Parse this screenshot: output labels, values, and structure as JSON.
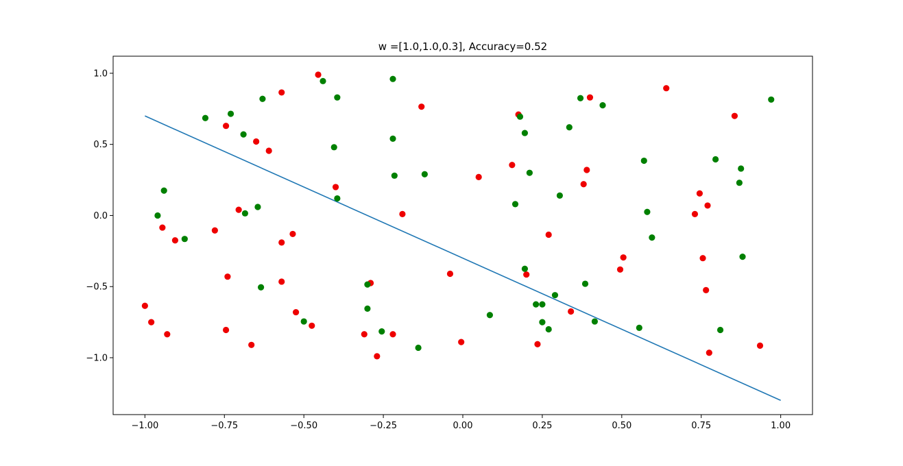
{
  "chart_data": {
    "type": "scatter",
    "title": "w =[1.0,1.0,0.3], Accuracy=0.52",
    "xlabel": "",
    "ylabel": "",
    "xlim": [
      -1.1,
      1.1
    ],
    "ylim": [
      -1.4,
      1.12
    ],
    "x_ticks": [
      -1.0,
      -0.75,
      -0.5,
      -0.25,
      0.0,
      0.25,
      0.5,
      0.75,
      1.0
    ],
    "x_tick_labels": [
      "−1.00",
      "−0.75",
      "−0.50",
      "−0.25",
      "0.00",
      "0.25",
      "0.50",
      "0.75",
      "1.00"
    ],
    "y_ticks": [
      1.0,
      0.5,
      0.0,
      -0.5,
      -1.0
    ],
    "y_tick_labels": [
      "1.0",
      "0.5",
      "0.0",
      "−0.5",
      "−1.0"
    ],
    "grid": false,
    "line": {
      "color": "#1f77b4",
      "points": [
        [
          -1.0,
          0.7
        ],
        [
          1.0,
          -1.3
        ]
      ]
    },
    "colors": {
      "red": "#ee0000",
      "green": "#008000"
    },
    "series": [
      {
        "color": "#ee0000",
        "points": [
          [
            -0.455,
            0.99
          ],
          [
            -0.57,
            0.865
          ],
          [
            -0.745,
            0.63
          ],
          [
            -0.65,
            0.52
          ],
          [
            -0.61,
            0.455
          ],
          [
            -0.705,
            0.04
          ],
          [
            -0.78,
            -0.105
          ],
          [
            -0.945,
            -0.085
          ],
          [
            -0.905,
            -0.175
          ],
          [
            -0.57,
            -0.19
          ],
          [
            -0.535,
            -0.13
          ],
          [
            -0.74,
            -0.43
          ],
          [
            -0.57,
            -0.465
          ],
          [
            -0.4,
            0.2
          ],
          [
            -0.19,
            0.01
          ],
          [
            -0.13,
            0.765
          ],
          [
            0.05,
            0.27
          ],
          [
            0.155,
            0.355
          ],
          [
            0.175,
            0.71
          ],
          [
            0.27,
            -0.135
          ],
          [
            0.2,
            -0.415
          ],
          [
            -0.04,
            -0.41
          ],
          [
            0.34,
            -0.675
          ],
          [
            0.235,
            -0.905
          ],
          [
            -0.005,
            -0.89
          ],
          [
            -0.22,
            -0.835
          ],
          [
            -0.27,
            -0.99
          ],
          [
            -0.31,
            -0.835
          ],
          [
            -0.29,
            -0.475
          ],
          [
            -0.525,
            -0.68
          ],
          [
            -0.475,
            -0.775
          ],
          [
            -0.665,
            -0.91
          ],
          [
            -0.745,
            -0.805
          ],
          [
            -1.0,
            -0.635
          ],
          [
            -0.98,
            -0.75
          ],
          [
            -0.93,
            -0.835
          ],
          [
            0.38,
            0.22
          ],
          [
            0.39,
            0.32
          ],
          [
            0.4,
            0.83
          ],
          [
            0.64,
            0.895
          ],
          [
            0.855,
            0.7
          ],
          [
            0.745,
            0.155
          ],
          [
            0.77,
            0.07
          ],
          [
            0.73,
            0.01
          ],
          [
            0.755,
            -0.3
          ],
          [
            0.765,
            -0.525
          ],
          [
            0.775,
            -0.965
          ],
          [
            0.935,
            -0.915
          ],
          [
            0.505,
            -0.295
          ],
          [
            0.495,
            -0.38
          ]
        ]
      },
      {
        "color": "#008000",
        "points": [
          [
            -0.44,
            0.945
          ],
          [
            -0.395,
            0.83
          ],
          [
            -0.63,
            0.82
          ],
          [
            -0.73,
            0.715
          ],
          [
            -0.81,
            0.685
          ],
          [
            -0.69,
            0.57
          ],
          [
            -0.405,
            0.48
          ],
          [
            -0.22,
            0.96
          ],
          [
            -0.22,
            0.54
          ],
          [
            -0.215,
            0.28
          ],
          [
            -0.12,
            0.29
          ],
          [
            -0.395,
            0.12
          ],
          [
            -0.94,
            0.175
          ],
          [
            -0.96,
            0.0
          ],
          [
            -0.685,
            0.015
          ],
          [
            -0.645,
            0.06
          ],
          [
            -0.875,
            -0.165
          ],
          [
            -0.635,
            -0.505
          ],
          [
            -0.5,
            -0.745
          ],
          [
            -0.3,
            -0.485
          ],
          [
            -0.3,
            -0.655
          ],
          [
            -0.255,
            -0.815
          ],
          [
            -0.14,
            -0.93
          ],
          [
            0.085,
            -0.7
          ],
          [
            0.18,
            0.695
          ],
          [
            0.195,
            0.58
          ],
          [
            0.21,
            0.3
          ],
          [
            0.165,
            0.08
          ],
          [
            0.305,
            0.14
          ],
          [
            0.335,
            0.62
          ],
          [
            0.37,
            0.825
          ],
          [
            0.44,
            0.775
          ],
          [
            0.195,
            -0.375
          ],
          [
            0.29,
            -0.56
          ],
          [
            0.23,
            -0.625
          ],
          [
            0.25,
            -0.625
          ],
          [
            0.25,
            -0.75
          ],
          [
            0.27,
            -0.8
          ],
          [
            0.385,
            -0.48
          ],
          [
            0.415,
            -0.745
          ],
          [
            0.57,
            0.385
          ],
          [
            0.58,
            0.025
          ],
          [
            0.595,
            -0.155
          ],
          [
            0.555,
            -0.79
          ],
          [
            0.795,
            0.395
          ],
          [
            0.875,
            0.33
          ],
          [
            0.87,
            0.23
          ],
          [
            0.88,
            -0.29
          ],
          [
            0.81,
            -0.805
          ],
          [
            0.97,
            0.815
          ]
        ]
      }
    ]
  }
}
